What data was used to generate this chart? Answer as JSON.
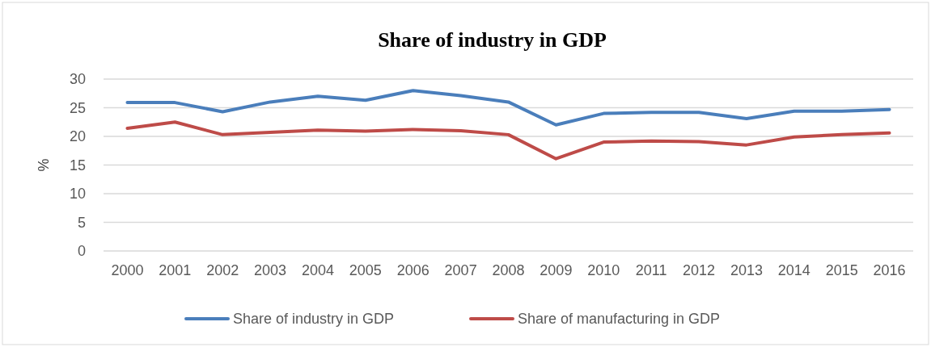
{
  "chart_data": {
    "type": "line",
    "title": "Share of industry in GDP",
    "ylabel": "%",
    "categories": [
      "2000",
      "2001",
      "2002",
      "2003",
      "2004",
      "2005",
      "2006",
      "2007",
      "2008",
      "2009",
      "2010",
      "2011",
      "2012",
      "2013",
      "2014",
      "2015",
      "2016"
    ],
    "series": [
      {
        "name": "Share of industry in GDP",
        "color": "#4a7ebb",
        "values": [
          25.9,
          25.9,
          24.3,
          26.0,
          27.0,
          26.3,
          28.0,
          27.1,
          26.0,
          22.0,
          24.0,
          24.2,
          24.2,
          23.1,
          24.4,
          24.4,
          24.7
        ]
      },
      {
        "name": "Share of manufacturing in GDP",
        "color": "#be4b48",
        "values": [
          21.4,
          22.5,
          20.3,
          20.7,
          21.1,
          20.9,
          21.2,
          21.0,
          20.3,
          16.1,
          19.0,
          19.2,
          19.1,
          18.5,
          19.9,
          20.3,
          20.6
        ]
      }
    ],
    "ylim": [
      0,
      30
    ],
    "yticks": [
      0,
      5,
      10,
      15,
      20,
      25,
      30
    ],
    "grid": "y",
    "legend": "bottom",
    "marker": "none",
    "line_style": "solid"
  }
}
